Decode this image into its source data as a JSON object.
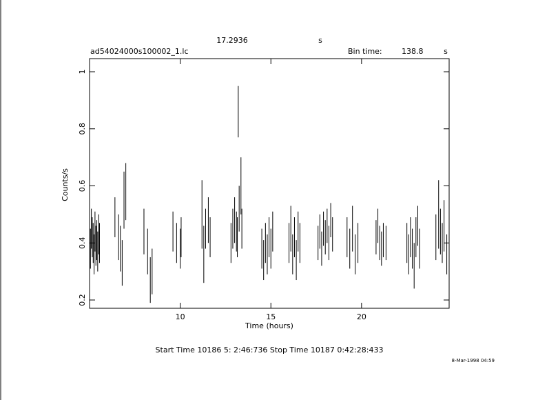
{
  "chart_data": {
    "type": "errorbar",
    "title": "17.2936",
    "title_unit": "s",
    "subtitle": "ad54024000s100002_1.lc",
    "bin_time_label": "Bin time:",
    "bin_time": "138.8",
    "bin_time_unit": "s",
    "xlabel": "Time (hours)",
    "ylabel": "Counts/s",
    "footer": "Start Time 10186  5: 2:46:736    Stop Time 10187  0:42:28:433",
    "date": "8-Mar-1998 04:59",
    "xlim": [
      5.0,
      24.83
    ],
    "ylim": [
      0.171,
      1.046
    ],
    "xticks": [
      10,
      15,
      20
    ],
    "yticks": [
      0.2,
      0.4,
      0.6,
      0.8,
      1
    ],
    "color": "#000000",
    "series": [
      {
        "x": [
          5.05,
          5.1,
          5.15,
          5.2,
          5.25,
          5.3,
          5.35,
          5.4,
          5.45,
          5.5,
          5.55,
          6.4,
          6.6,
          6.7,
          6.8,
          6.9,
          7.0,
          8.0,
          8.2,
          8.35,
          8.45,
          9.6,
          9.8,
          10.0,
          10.05,
          11.2,
          11.3,
          11.4,
          11.55,
          11.65,
          12.8,
          12.9,
          13.0,
          13.1,
          13.15,
          13.2,
          13.25,
          13.35,
          13.4,
          14.5,
          14.6,
          14.7,
          14.8,
          14.9,
          15.0,
          15.1,
          16.0,
          16.1,
          16.2,
          16.3,
          16.4,
          16.5,
          16.6,
          17.6,
          17.7,
          17.8,
          17.9,
          18.0,
          18.1,
          18.2,
          18.3,
          18.4,
          19.2,
          19.35,
          19.5,
          19.65,
          19.8,
          20.8,
          20.9,
          21.0,
          21.1,
          21.2,
          21.35,
          22.5,
          22.6,
          22.7,
          22.8,
          22.9,
          23.0,
          23.1,
          23.2,
          24.1,
          24.25,
          24.35,
          24.45,
          24.55,
          24.7
        ],
        "values": [
          0.38,
          0.45,
          0.42,
          0.4,
          0.36,
          0.44,
          0.39,
          0.41,
          0.37,
          0.43,
          0.4,
          0.49,
          0.42,
          0.38,
          0.33,
          0.55,
          0.58,
          0.44,
          0.37,
          0.27,
          0.3,
          0.44,
          0.4,
          0.38,
          0.42,
          0.5,
          0.36,
          0.45,
          0.48,
          0.42,
          0.4,
          0.45,
          0.48,
          0.44,
          0.42,
          0.86,
          0.52,
          0.6,
          0.45,
          0.38,
          0.34,
          0.4,
          0.36,
          0.42,
          0.38,
          0.44,
          0.4,
          0.45,
          0.36,
          0.42,
          0.34,
          0.44,
          0.4,
          0.4,
          0.44,
          0.38,
          0.45,
          0.42,
          0.46,
          0.4,
          0.48,
          0.43,
          0.42,
          0.38,
          0.45,
          0.36,
          0.4,
          0.42,
          0.46,
          0.4,
          0.38,
          0.41,
          0.4,
          0.4,
          0.36,
          0.42,
          0.38,
          0.32,
          0.42,
          0.46,
          0.38,
          0.42,
          0.5,
          0.44,
          0.4,
          0.46,
          0.36
        ],
        "errors": [
          0.07,
          0.07,
          0.07,
          0.07,
          0.07,
          0.07,
          0.07,
          0.07,
          0.07,
          0.07,
          0.07,
          0.07,
          0.08,
          0.08,
          0.08,
          0.1,
          0.1,
          0.08,
          0.08,
          0.08,
          0.08,
          0.07,
          0.07,
          0.07,
          0.07,
          0.12,
          0.1,
          0.07,
          0.08,
          0.07,
          0.07,
          0.07,
          0.08,
          0.07,
          0.07,
          0.09,
          0.08,
          0.1,
          0.07,
          0.07,
          0.07,
          0.07,
          0.07,
          0.07,
          0.07,
          0.07,
          0.07,
          0.08,
          0.07,
          0.07,
          0.07,
          0.07,
          0.07,
          0.06,
          0.06,
          0.06,
          0.06,
          0.06,
          0.06,
          0.06,
          0.06,
          0.06,
          0.07,
          0.07,
          0.08,
          0.07,
          0.07,
          0.06,
          0.06,
          0.06,
          0.06,
          0.06,
          0.06,
          0.07,
          0.07,
          0.07,
          0.07,
          0.08,
          0.07,
          0.07,
          0.07,
          0.08,
          0.12,
          0.08,
          0.07,
          0.09,
          0.07
        ]
      }
    ]
  }
}
